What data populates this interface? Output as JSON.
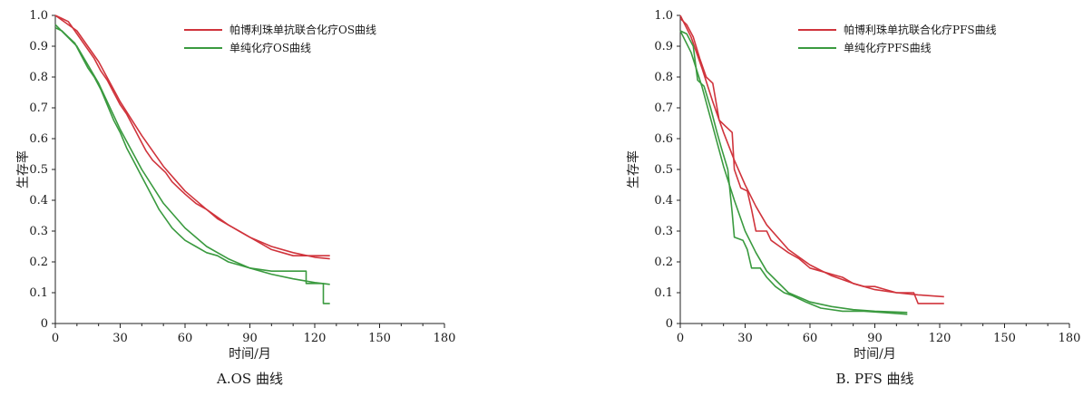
{
  "chart_data": [
    {
      "type": "line",
      "caption": "A.OS 曲线",
      "xlabel": "时间/月",
      "ylabel": "生存率",
      "xlim": [
        0,
        180
      ],
      "ylim": [
        0,
        1.0
      ],
      "xticks": [
        0,
        30,
        60,
        90,
        120,
        150,
        180
      ],
      "yticks": [
        0,
        0.1,
        0.2,
        0.3,
        0.4,
        0.5,
        0.6,
        0.7,
        0.8,
        0.9,
        1.0
      ],
      "legend_position": "top-center",
      "series": [
        {
          "name": "帕博利珠单抗联合化疗OS曲线",
          "color": "#d0343c",
          "km": [
            [
              0,
              1.0
            ],
            [
              3,
              0.99
            ],
            [
              6,
              0.98
            ],
            [
              9,
              0.95
            ],
            [
              12,
              0.92
            ],
            [
              15,
              0.89
            ],
            [
              18,
              0.86
            ],
            [
              21,
              0.82
            ],
            [
              24,
              0.79
            ],
            [
              27,
              0.75
            ],
            [
              30,
              0.71
            ],
            [
              33,
              0.68
            ],
            [
              36,
              0.64
            ],
            [
              39,
              0.6
            ],
            [
              42,
              0.56
            ],
            [
              45,
              0.53
            ],
            [
              48,
              0.51
            ],
            [
              51,
              0.49
            ],
            [
              54,
              0.46
            ],
            [
              57,
              0.44
            ],
            [
              60,
              0.42
            ],
            [
              65,
              0.39
            ],
            [
              70,
              0.37
            ],
            [
              75,
              0.34
            ],
            [
              80,
              0.32
            ],
            [
              85,
              0.3
            ],
            [
              90,
              0.28
            ],
            [
              95,
              0.26
            ],
            [
              100,
              0.24
            ],
            [
              105,
              0.23
            ],
            [
              110,
              0.22
            ],
            [
              120,
              0.22
            ],
            [
              127,
              0.22
            ]
          ],
          "fit": [
            [
              0,
              1.0
            ],
            [
              10,
              0.95
            ],
            [
              20,
              0.85
            ],
            [
              30,
              0.72
            ],
            [
              40,
              0.61
            ],
            [
              50,
              0.51
            ],
            [
              60,
              0.43
            ],
            [
              70,
              0.37
            ],
            [
              80,
              0.32
            ],
            [
              90,
              0.28
            ],
            [
              100,
              0.25
            ],
            [
              110,
              0.23
            ],
            [
              120,
              0.215
            ],
            [
              127,
              0.21
            ]
          ]
        },
        {
          "name": "单纯化疗OS曲线",
          "color": "#3a9a3f",
          "km": [
            [
              0,
              0.96
            ],
            [
              3,
              0.95
            ],
            [
              6,
              0.93
            ],
            [
              9,
              0.91
            ],
            [
              12,
              0.87
            ],
            [
              15,
              0.83
            ],
            [
              18,
              0.8
            ],
            [
              21,
              0.76
            ],
            [
              24,
              0.71
            ],
            [
              27,
              0.66
            ],
            [
              30,
              0.62
            ],
            [
              33,
              0.57
            ],
            [
              36,
              0.53
            ],
            [
              39,
              0.49
            ],
            [
              42,
              0.45
            ],
            [
              45,
              0.41
            ],
            [
              48,
              0.37
            ],
            [
              51,
              0.34
            ],
            [
              54,
              0.31
            ],
            [
              57,
              0.29
            ],
            [
              60,
              0.27
            ],
            [
              65,
              0.25
            ],
            [
              70,
              0.23
            ],
            [
              75,
              0.22
            ],
            [
              80,
              0.2
            ],
            [
              85,
              0.19
            ],
            [
              90,
              0.18
            ],
            [
              100,
              0.17
            ],
            [
              110,
              0.17
            ],
            [
              116,
              0.17
            ],
            [
              116,
              0.13
            ],
            [
              124,
              0.13
            ],
            [
              124,
              0.065
            ],
            [
              127,
              0.065
            ]
          ],
          "fit": [
            [
              0,
              0.97
            ],
            [
              10,
              0.9
            ],
            [
              20,
              0.78
            ],
            [
              30,
              0.63
            ],
            [
              40,
              0.5
            ],
            [
              50,
              0.39
            ],
            [
              60,
              0.31
            ],
            [
              70,
              0.25
            ],
            [
              80,
              0.21
            ],
            [
              90,
              0.18
            ],
            [
              100,
              0.16
            ],
            [
              110,
              0.145
            ],
            [
              120,
              0.133
            ],
            [
              127,
              0.127
            ]
          ]
        }
      ]
    },
    {
      "type": "line",
      "caption": "B. PFS 曲线",
      "xlabel": "时间/月",
      "ylabel": "生存率",
      "xlim": [
        0,
        180
      ],
      "ylim": [
        0,
        1.0
      ],
      "xticks": [
        0,
        30,
        60,
        90,
        120,
        150,
        180
      ],
      "yticks": [
        0,
        0.1,
        0.2,
        0.3,
        0.4,
        0.5,
        0.6,
        0.7,
        0.8,
        0.9,
        1.0
      ],
      "legend_position": "top-center",
      "series": [
        {
          "name": "帕博利珠单抗联合化疗PFS曲线",
          "color": "#d0343c",
          "km": [
            [
              0,
              0.99
            ],
            [
              3,
              0.97
            ],
            [
              6,
              0.93
            ],
            [
              9,
              0.86
            ],
            [
              12,
              0.8
            ],
            [
              15,
              0.78
            ],
            [
              18,
              0.66
            ],
            [
              21,
              0.64
            ],
            [
              24,
              0.62
            ],
            [
              25,
              0.5
            ],
            [
              28,
              0.44
            ],
            [
              31,
              0.43
            ],
            [
              33,
              0.37
            ],
            [
              35,
              0.3
            ],
            [
              40,
              0.3
            ],
            [
              42,
              0.27
            ],
            [
              46,
              0.25
            ],
            [
              50,
              0.23
            ],
            [
              55,
              0.21
            ],
            [
              60,
              0.18
            ],
            [
              65,
              0.17
            ],
            [
              70,
              0.16
            ],
            [
              75,
              0.15
            ],
            [
              80,
              0.13
            ],
            [
              85,
              0.12
            ],
            [
              90,
              0.12
            ],
            [
              95,
              0.11
            ],
            [
              100,
              0.1
            ],
            [
              108,
              0.1
            ],
            [
              110,
              0.065
            ],
            [
              122,
              0.065
            ]
          ],
          "fit": [
            [
              0,
              1.0
            ],
            [
              5,
              0.93
            ],
            [
              10,
              0.83
            ],
            [
              15,
              0.72
            ],
            [
              20,
              0.62
            ],
            [
              25,
              0.53
            ],
            [
              30,
              0.45
            ],
            [
              35,
              0.38
            ],
            [
              40,
              0.32
            ],
            [
              50,
              0.24
            ],
            [
              60,
              0.19
            ],
            [
              70,
              0.155
            ],
            [
              80,
              0.13
            ],
            [
              90,
              0.11
            ],
            [
              100,
              0.1
            ],
            [
              110,
              0.093
            ],
            [
              122,
              0.087
            ]
          ]
        },
        {
          "name": "单纯化疗PFS曲线",
          "color": "#3a9a3f",
          "km": [
            [
              0,
              0.95
            ],
            [
              3,
              0.94
            ],
            [
              6,
              0.9
            ],
            [
              8,
              0.79
            ],
            [
              11,
              0.77
            ],
            [
              14,
              0.7
            ],
            [
              17,
              0.62
            ],
            [
              19,
              0.57
            ],
            [
              22,
              0.5
            ],
            [
              24,
              0.36
            ],
            [
              25,
              0.28
            ],
            [
              29,
              0.27
            ],
            [
              31,
              0.24
            ],
            [
              33,
              0.18
            ],
            [
              37,
              0.18
            ],
            [
              40,
              0.15
            ],
            [
              44,
              0.12
            ],
            [
              48,
              0.1
            ],
            [
              52,
              0.09
            ],
            [
              58,
              0.07
            ],
            [
              65,
              0.05
            ],
            [
              75,
              0.04
            ],
            [
              85,
              0.04
            ],
            [
              95,
              0.035
            ],
            [
              105,
              0.03
            ]
          ],
          "fit": [
            [
              0,
              0.95
            ],
            [
              5,
              0.88
            ],
            [
              10,
              0.77
            ],
            [
              15,
              0.64
            ],
            [
              20,
              0.51
            ],
            [
              25,
              0.4
            ],
            [
              30,
              0.3
            ],
            [
              35,
              0.23
            ],
            [
              40,
              0.17
            ],
            [
              50,
              0.1
            ],
            [
              60,
              0.07
            ],
            [
              70,
              0.055
            ],
            [
              80,
              0.045
            ],
            [
              90,
              0.04
            ],
            [
              105,
              0.036
            ]
          ]
        }
      ]
    }
  ]
}
